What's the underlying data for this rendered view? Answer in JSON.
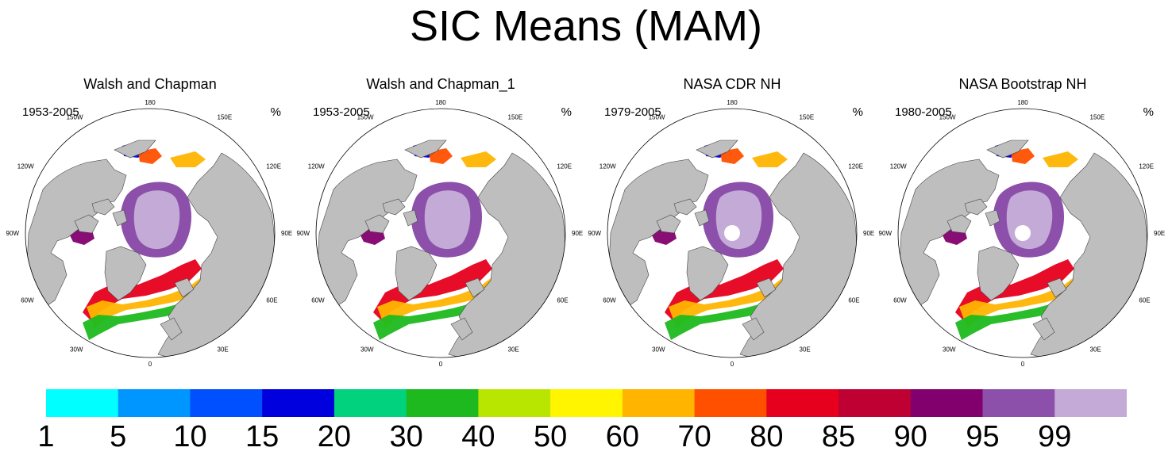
{
  "title": "SIC Means (MAM)",
  "unit": "%",
  "panels": [
    {
      "title": "Walsh and Chapman",
      "period": "1953-2005",
      "pole_hole": false
    },
    {
      "title": "Walsh and Chapman_1",
      "period": "1953-2005",
      "pole_hole": false
    },
    {
      "title": "NASA CDR NH",
      "period": "1979-2005",
      "pole_hole": true
    },
    {
      "title": "NASA Bootstrap NH",
      "period": "1980-2005",
      "pole_hole": true
    }
  ],
  "longitude_labels": [
    "180",
    "150E",
    "120E",
    "90E",
    "60E",
    "30E",
    "0",
    "30W",
    "60W",
    "90W",
    "120W",
    "150W"
  ],
  "colorbar": {
    "levels": [
      "1",
      "5",
      "10",
      "15",
      "20",
      "30",
      "40",
      "50",
      "60",
      "70",
      "80",
      "85",
      "90",
      "95",
      "99"
    ],
    "colors": [
      "#00ffff",
      "#0096ff",
      "#0050ff",
      "#0000de",
      "#00d27d",
      "#1eb91e",
      "#b9e600",
      "#fff500",
      "#ffb400",
      "#ff5000",
      "#e6001e",
      "#be0032",
      "#82006e",
      "#8c50aa",
      "#c3aad7"
    ]
  },
  "land_color": "#bebebe",
  "ocean_color": "#ffffff"
}
